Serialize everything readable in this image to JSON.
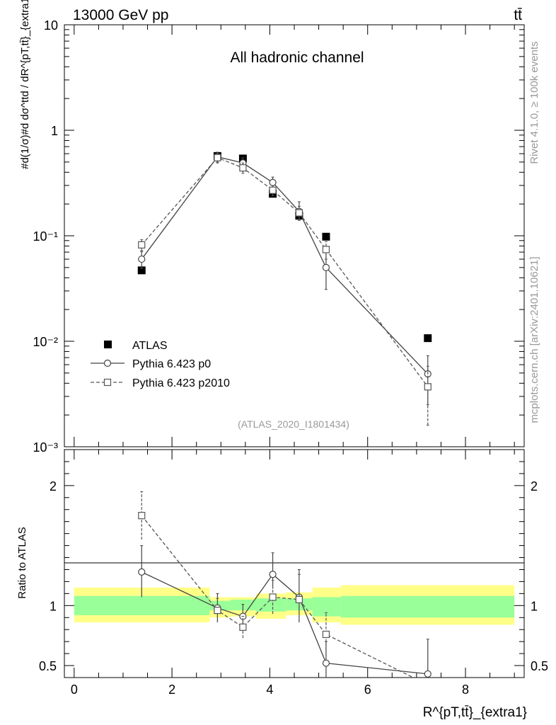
{
  "header": {
    "energy_label": "13000 GeV pp",
    "process_label": "tt̄",
    "side_label_rivet": "Rivet 4.1.0, ≥ 100k events",
    "side_label_mcplots": "mcplots.cern.ch [arXiv:2401.10621]"
  },
  "colors": {
    "data": "#000000",
    "mc_p0": "#444444",
    "mc_p2010": "#555555",
    "band_inner": "#99ff99",
    "band_outer": "#ffff88",
    "watermark": "#999999"
  },
  "chart_data": [
    {
      "type": "scatter",
      "panel": "main",
      "title": "All hadronic channel",
      "analysis_label": "(ATLAS_2020_I1801434)",
      "ylabel": "#d(1/σ)#d dσ^ttd / dR^{pT,tt̄}_{extra1}",
      "yscale": "log",
      "ylim": [
        0.001,
        10
      ],
      "xlim": [
        -0.2,
        9.2
      ],
      "y_tick_labels": [
        "10⁻³",
        "10⁻²",
        "10⁻¹",
        "1",
        "10"
      ],
      "legend": {
        "position": "bottom-left",
        "entries": [
          "ATLAS",
          "Pythia 6.423 p0",
          "Pythia 6.423 p2010"
        ]
      },
      "series": [
        {
          "name": "ATLAS",
          "marker": "filled-square",
          "x": [
            1.38,
            2.93,
            3.45,
            4.06,
            4.6,
            5.15,
            7.23
          ],
          "y": [
            0.047,
            0.57,
            0.54,
            0.25,
            0.155,
            0.098,
            0.0107
          ]
        },
        {
          "name": "Pythia 6.423 p0",
          "marker": "open-circle",
          "line": "solid",
          "x": [
            1.38,
            2.93,
            3.45,
            4.06,
            4.6,
            5.15,
            7.23
          ],
          "y": [
            0.06,
            0.56,
            0.49,
            0.32,
            0.17,
            0.05,
            0.0049
          ],
          "err_lo": [
            0.049,
            0.49,
            0.45,
            0.29,
            0.14,
            0.031,
            0.0025
          ],
          "err_hi": [
            0.071,
            0.62,
            0.55,
            0.36,
            0.21,
            0.069,
            0.0073
          ]
        },
        {
          "name": "Pythia 6.423 p2010",
          "marker": "open-square",
          "line": "dashed",
          "x": [
            1.38,
            2.93,
            3.45,
            4.06,
            4.6,
            5.15,
            7.23
          ],
          "y": [
            0.082,
            0.55,
            0.44,
            0.27,
            0.165,
            0.074,
            0.0037
          ],
          "err_lo": [
            0.072,
            0.5,
            0.39,
            0.24,
            0.14,
            0.06,
            0.0016
          ],
          "err_hi": [
            0.092,
            0.6,
            0.49,
            0.3,
            0.19,
            0.088,
            0.0058
          ]
        }
      ]
    },
    {
      "type": "line",
      "panel": "ratio",
      "ylabel": "Ratio to ATLAS",
      "xlabel": "R^{pT,tt̄}_{extra1}",
      "ylim": [
        0.4,
        2.3
      ],
      "xlim": [
        -0.2,
        9.2
      ],
      "x_ticks": [
        0,
        2,
        4,
        6,
        8
      ],
      "x_tick_labels": [
        "0",
        "2",
        "4",
        "6",
        "8"
      ],
      "y_ticks": [
        0.5,
        1,
        2
      ],
      "y_tick_labels": [
        "0.5",
        "1",
        "2"
      ],
      "uncertainty_bands": [
        {
          "x0": 0.0,
          "x1": 2.77,
          "inner": [
            0.92,
            1.08
          ],
          "outer": [
            0.86,
            1.15
          ]
        },
        {
          "x0": 2.77,
          "x1": 3.2,
          "inner": [
            0.96,
            1.04
          ],
          "outer": [
            0.9,
            1.07
          ]
        },
        {
          "x0": 3.2,
          "x1": 3.72,
          "inner": [
            0.96,
            1.05
          ],
          "outer": [
            0.91,
            1.07
          ]
        },
        {
          "x0": 3.72,
          "x1": 4.33,
          "inner": [
            0.95,
            1.06
          ],
          "outer": [
            0.89,
            1.1
          ]
        },
        {
          "x0": 4.33,
          "x1": 4.87,
          "inner": [
            0.96,
            1.06
          ],
          "outer": [
            0.92,
            1.11
          ]
        },
        {
          "x0": 4.87,
          "x1": 5.45,
          "inner": [
            0.91,
            1.07
          ],
          "outer": [
            0.86,
            1.15
          ]
        },
        {
          "x0": 5.45,
          "x1": 9.0,
          "inner": [
            0.9,
            1.08
          ],
          "outer": [
            0.84,
            1.17
          ]
        }
      ],
      "series": [
        {
          "name": "Pythia 6.423 p0",
          "marker": "open-circle",
          "line": "solid",
          "x": [
            1.38,
            2.93,
            3.45,
            4.06,
            4.6,
            5.15,
            7.23
          ],
          "y": [
            1.28,
            0.98,
            0.91,
            1.26,
            1.07,
            0.52,
            0.43
          ],
          "err_lo": [
            1.07,
            0.86,
            0.82,
            1.14,
            0.86,
            0.32,
            0.25
          ],
          "err_hi": [
            1.5,
            1.1,
            1.01,
            1.44,
            1.3,
            0.7,
            0.72
          ]
        },
        {
          "name": "Pythia 6.423 p2010",
          "marker": "open-square",
          "line": "dashed",
          "x": [
            1.38,
            2.93,
            3.45,
            4.06,
            4.6,
            5.15,
            7.23
          ],
          "y": [
            1.75,
            0.96,
            0.82,
            1.07,
            1.05,
            0.76,
            0.34
          ],
          "err_lo": [
            1.55,
            0.86,
            0.73,
            0.93,
            0.86,
            0.59,
            0.2
          ],
          "err_hi": [
            1.95,
            1.06,
            0.91,
            1.21,
            1.26,
            0.94,
            0.5
          ]
        }
      ]
    }
  ]
}
